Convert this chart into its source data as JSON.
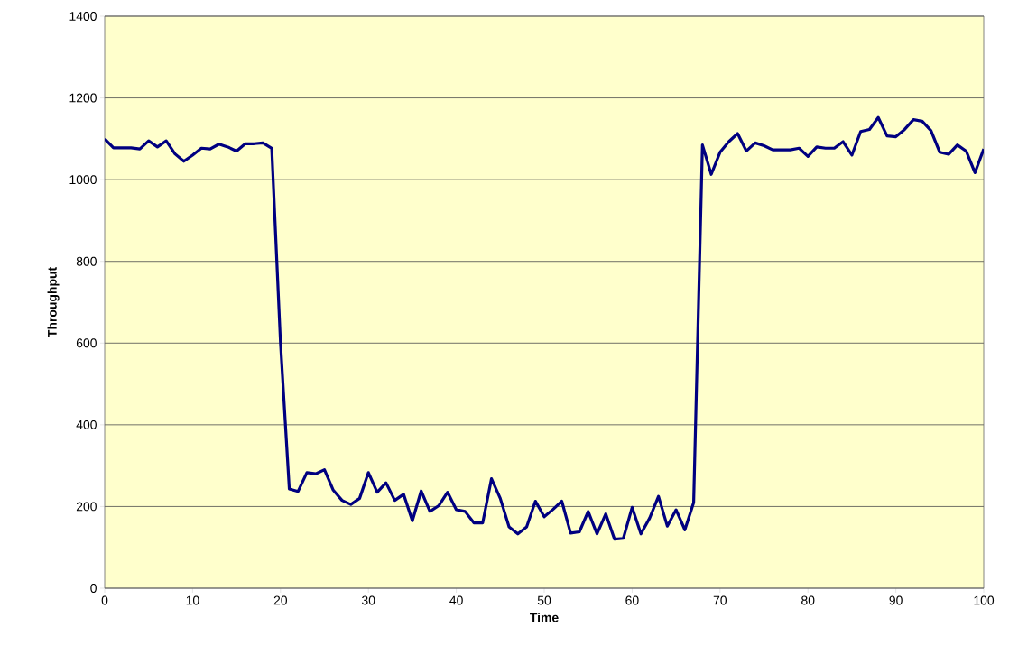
{
  "chart_data": {
    "type": "line",
    "xlabel": "Time",
    "ylabel": "Throughput",
    "x": [
      0,
      1,
      2,
      3,
      4,
      5,
      6,
      7,
      8,
      9,
      10,
      11,
      12,
      13,
      14,
      15,
      16,
      17,
      18,
      19,
      20,
      21,
      22,
      23,
      24,
      25,
      26,
      27,
      28,
      29,
      30,
      31,
      32,
      33,
      34,
      35,
      36,
      37,
      38,
      39,
      40,
      41,
      42,
      43,
      44,
      45,
      46,
      47,
      48,
      49,
      50,
      51,
      52,
      53,
      54,
      55,
      56,
      57,
      58,
      59,
      60,
      61,
      62,
      63,
      64,
      65,
      66,
      67,
      68,
      69,
      70,
      71,
      72,
      73,
      74,
      75,
      76,
      77,
      78,
      79,
      80,
      81,
      82,
      83,
      84,
      85,
      86,
      87,
      88,
      89,
      90,
      91,
      92,
      93,
      94,
      95,
      96,
      97,
      98,
      99,
      100
    ],
    "series": [
      {
        "color": "#000080",
        "values": [
          1100,
          1078,
          1078,
          1078,
          1075,
          1095,
          1080,
          1095,
          1063,
          1045,
          1060,
          1077,
          1075,
          1087,
          1080,
          1070,
          1088,
          1088,
          1090,
          1077,
          600,
          243,
          237,
          283,
          280,
          290,
          240,
          215,
          205,
          220,
          283,
          235,
          258,
          215,
          230,
          165,
          238,
          188,
          202,
          235,
          192,
          188,
          160,
          160,
          268,
          220,
          150,
          133,
          150,
          213,
          175,
          193,
          213,
          135,
          138,
          188,
          133,
          182,
          120,
          122,
          198,
          133,
          172,
          225,
          152,
          192,
          143,
          210,
          1085,
          1013,
          1067,
          1093,
          1113,
          1070,
          1090,
          1083,
          1073,
          1073,
          1073,
          1077,
          1057,
          1080,
          1077,
          1077,
          1093,
          1060,
          1118,
          1123,
          1152,
          1107,
          1105,
          1123,
          1147,
          1143,
          1120,
          1067,
          1062,
          1085,
          1070,
          1017,
          1075
        ]
      }
    ],
    "xlim": [
      0,
      100
    ],
    "ylim": [
      0,
      1400
    ],
    "xticks": [
      0,
      10,
      20,
      30,
      40,
      50,
      60,
      70,
      80,
      90,
      100
    ],
    "yticks": [
      0,
      200,
      400,
      600,
      800,
      1000,
      1200,
      1400
    ],
    "grid": "y",
    "marker": "none",
    "line_style": "solid"
  }
}
